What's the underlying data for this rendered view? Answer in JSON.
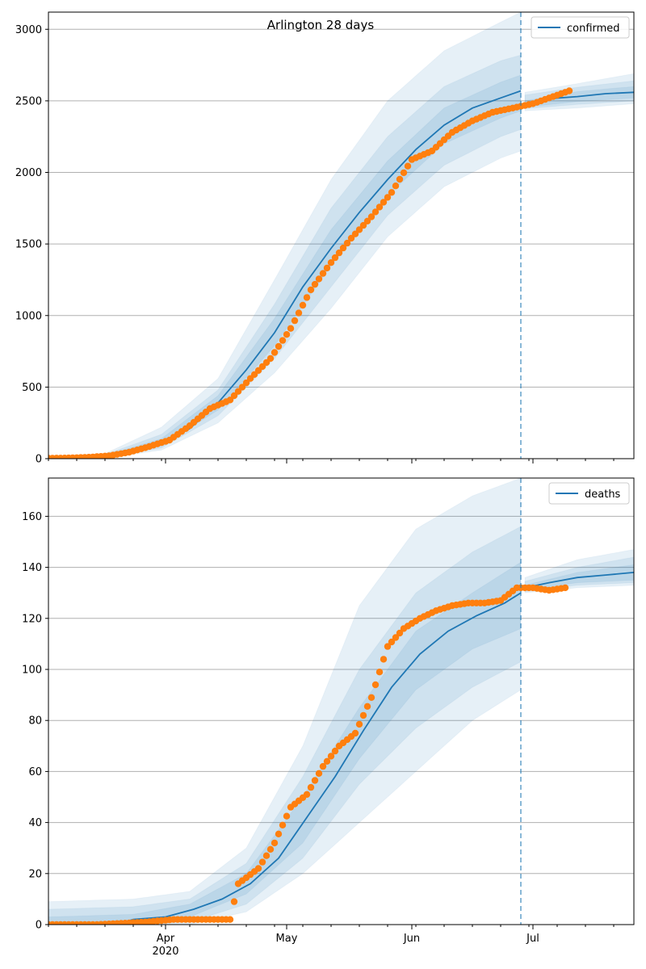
{
  "title": "Arlington 28 days",
  "x_ticks": {
    "major": [
      {
        "date": "2020-04-01",
        "label": "Apr",
        "sublabel": "2020"
      },
      {
        "date": "2020-05-01",
        "label": "May",
        "sublabel": ""
      },
      {
        "date": "2020-06-01",
        "label": "Jun",
        "sublabel": ""
      },
      {
        "date": "2020-07-01",
        "label": "Jul",
        "sublabel": ""
      }
    ]
  },
  "colors": {
    "forecast_line": "#1f77b4",
    "observed_points": "#ff7f0e",
    "band_fill": "#1f77b4",
    "grid": "#b0b0b0",
    "forecast_start_line": "#1f77b4"
  },
  "forecast_start_date": "2020-06-28",
  "chart_data": [
    {
      "type": "line",
      "panel": "top",
      "title": "Arlington 28 days",
      "xlabel": "",
      "ylabel": "",
      "x_range": [
        "2020-03-03",
        "2020-07-26"
      ],
      "ylim": [
        0,
        3120
      ],
      "y_ticks": [
        0,
        500,
        1000,
        1500,
        2000,
        2500,
        3000
      ],
      "grid": "horizontal",
      "legend": {
        "position": "top-right",
        "entries": [
          "confirmed"
        ]
      },
      "series": [
        {
          "name": "confirmed",
          "kind": "forecast_median",
          "points": [
            [
              "2020-03-03",
              0
            ],
            [
              "2020-03-10",
              4
            ],
            [
              "2020-03-17",
              14
            ],
            [
              "2020-03-24",
              45
            ],
            [
              "2020-03-31",
              110
            ],
            [
              "2020-04-07",
              210
            ],
            [
              "2020-04-14",
              390
            ],
            [
              "2020-04-21",
              620
            ],
            [
              "2020-04-28",
              880
            ],
            [
              "2020-05-05",
              1200
            ],
            [
              "2020-05-12",
              1470
            ],
            [
              "2020-05-19",
              1720
            ],
            [
              "2020-05-26",
              1950
            ],
            [
              "2020-06-02",
              2160
            ],
            [
              "2020-06-09",
              2330
            ],
            [
              "2020-06-16",
              2450
            ],
            [
              "2020-06-23",
              2520
            ],
            [
              "2020-06-28",
              2570
            ],
            [
              "2020-06-29",
              2470
            ],
            [
              "2020-07-05",
              2515
            ],
            [
              "2020-07-12",
              2530
            ],
            [
              "2020-07-19",
              2550
            ],
            [
              "2020-07-26",
              2560
            ]
          ]
        },
        {
          "name": "",
          "kind": "observed",
          "points": [
            [
              "2020-03-03",
              3
            ],
            [
              "2020-03-08",
              5
            ],
            [
              "2020-03-13",
              10
            ],
            [
              "2020-03-18",
              20
            ],
            [
              "2020-03-23",
              45
            ],
            [
              "2020-03-28",
              85
            ],
            [
              "2020-04-02",
              130
            ],
            [
              "2020-04-07",
              230
            ],
            [
              "2020-04-12",
              350
            ],
            [
              "2020-04-17",
              410
            ],
            [
              "2020-04-22",
              560
            ],
            [
              "2020-04-27",
              700
            ],
            [
              "2020-05-02",
              910
            ],
            [
              "2020-05-07",
              1180
            ],
            [
              "2020-05-12",
              1370
            ],
            [
              "2020-05-17",
              1540
            ],
            [
              "2020-05-22",
              1690
            ],
            [
              "2020-05-27",
              1860
            ],
            [
              "2020-06-01",
              2090
            ],
            [
              "2020-06-06",
              2150
            ],
            [
              "2020-06-11",
              2280
            ],
            [
              "2020-06-16",
              2360
            ],
            [
              "2020-06-21",
              2420
            ],
            [
              "2020-06-26",
              2450
            ],
            [
              "2020-07-01",
              2480
            ],
            [
              "2020-07-06",
              2530
            ],
            [
              "2020-07-10",
              2570
            ]
          ]
        }
      ],
      "bands": [
        {
          "level": 95,
          "points": [
            [
              "2020-03-03",
              0,
              12
            ],
            [
              "2020-03-17",
              2,
              35
            ],
            [
              "2020-03-31",
              60,
              220
            ],
            [
              "2020-04-14",
              250,
              560
            ],
            [
              "2020-04-28",
              600,
              1250
            ],
            [
              "2020-05-12",
              1050,
              1950
            ],
            [
              "2020-05-26",
              1550,
              2500
            ],
            [
              "2020-06-09",
              1900,
              2850
            ],
            [
              "2020-06-23",
              2100,
              3050
            ],
            [
              "2020-06-28",
              2150,
              3120
            ],
            [
              "2020-06-29",
              2430,
              2560
            ],
            [
              "2020-07-12",
              2450,
              2620
            ],
            [
              "2020-07-26",
              2480,
              2690
            ]
          ]
        },
        {
          "level": 80,
          "points": [
            [
              "2020-03-03",
              0,
              8
            ],
            [
              "2020-03-17",
              4,
              28
            ],
            [
              "2020-03-31",
              75,
              170
            ],
            [
              "2020-04-14",
              300,
              480
            ],
            [
              "2020-04-28",
              700,
              1080
            ],
            [
              "2020-05-12",
              1200,
              1750
            ],
            [
              "2020-05-26",
              1700,
              2250
            ],
            [
              "2020-06-09",
              2050,
              2600
            ],
            [
              "2020-06-23",
              2250,
              2780
            ],
            [
              "2020-06-28",
              2300,
              2820
            ],
            [
              "2020-06-29",
              2445,
              2540
            ],
            [
              "2020-07-12",
              2475,
              2595
            ],
            [
              "2020-07-26",
              2500,
              2640
            ]
          ]
        },
        {
          "level": 50,
          "points": [
            [
              "2020-03-03",
              0,
              6
            ],
            [
              "2020-03-17",
              8,
              22
            ],
            [
              "2020-03-31",
              90,
              140
            ],
            [
              "2020-04-14",
              340,
              440
            ],
            [
              "2020-04-28",
              790,
              980
            ],
            [
              "2020-05-12",
              1350,
              1600
            ],
            [
              "2020-05-26",
              1840,
              2080
            ],
            [
              "2020-06-09",
              2200,
              2450
            ],
            [
              "2020-06-23",
              2380,
              2630
            ],
            [
              "2020-06-28",
              2430,
              2680
            ],
            [
              "2020-06-29",
              2455,
              2500
            ],
            [
              "2020-07-12",
              2495,
              2565
            ],
            [
              "2020-07-26",
              2520,
              2600
            ]
          ]
        }
      ]
    },
    {
      "type": "line",
      "panel": "bottom",
      "title": "",
      "xlabel": "",
      "ylabel": "",
      "x_range": [
        "2020-03-03",
        "2020-07-26"
      ],
      "ylim": [
        0,
        175
      ],
      "y_ticks": [
        0,
        20,
        40,
        60,
        80,
        100,
        120,
        140,
        160
      ],
      "grid": "horizontal",
      "legend": {
        "position": "top-right",
        "entries": [
          "deaths"
        ]
      },
      "series": [
        {
          "name": "deaths",
          "kind": "forecast_median",
          "points": [
            [
              "2020-03-03",
              0
            ],
            [
              "2020-03-20",
              0
            ],
            [
              "2020-03-24",
              2
            ],
            [
              "2020-04-01",
              3
            ],
            [
              "2020-04-08",
              6
            ],
            [
              "2020-04-15",
              10
            ],
            [
              "2020-04-22",
              16
            ],
            [
              "2020-04-29",
              26
            ],
            [
              "2020-05-06",
              42
            ],
            [
              "2020-05-13",
              58
            ],
            [
              "2020-05-20",
              76
            ],
            [
              "2020-05-27",
              93
            ],
            [
              "2020-06-03",
              106
            ],
            [
              "2020-06-10",
              115
            ],
            [
              "2020-06-17",
              121
            ],
            [
              "2020-06-24",
              126
            ],
            [
              "2020-06-28",
              130
            ],
            [
              "2020-06-29",
              132
            ],
            [
              "2020-07-05",
              134
            ],
            [
              "2020-07-12",
              136
            ],
            [
              "2020-07-19",
              137
            ],
            [
              "2020-07-26",
              138
            ]
          ]
        },
        {
          "name": "",
          "kind": "observed",
          "points": [
            [
              "2020-03-03",
              0
            ],
            [
              "2020-03-15",
              0
            ],
            [
              "2020-03-27",
              1
            ],
            [
              "2020-04-03",
              2
            ],
            [
              "2020-04-17",
              2
            ],
            [
              "2020-04-19",
              16
            ],
            [
              "2020-04-24",
              22
            ],
            [
              "2020-04-28",
              32
            ],
            [
              "2020-05-02",
              46
            ],
            [
              "2020-05-06",
              51
            ],
            [
              "2020-05-10",
              62
            ],
            [
              "2020-05-14",
              70
            ],
            [
              "2020-05-18",
              75
            ],
            [
              "2020-05-22",
              89
            ],
            [
              "2020-05-26",
              109
            ],
            [
              "2020-05-30",
              116
            ],
            [
              "2020-06-03",
              120
            ],
            [
              "2020-06-07",
              123
            ],
            [
              "2020-06-11",
              125
            ],
            [
              "2020-06-15",
              126
            ],
            [
              "2020-06-19",
              126
            ],
            [
              "2020-06-23",
              127
            ],
            [
              "2020-06-27",
              132
            ],
            [
              "2020-07-01",
              132
            ],
            [
              "2020-07-05",
              131
            ],
            [
              "2020-07-09",
              132
            ]
          ]
        }
      ],
      "bands": [
        {
          "level": 95,
          "points": [
            [
              "2020-03-03",
              0,
              9
            ],
            [
              "2020-03-24",
              0,
              10
            ],
            [
              "2020-04-07",
              0,
              13
            ],
            [
              "2020-04-21",
              5,
              30
            ],
            [
              "2020-05-05",
              20,
              70
            ],
            [
              "2020-05-19",
              40,
              125
            ],
            [
              "2020-06-02",
              60,
              155
            ],
            [
              "2020-06-16",
              80,
              168
            ],
            [
              "2020-06-28",
              92,
              175
            ],
            [
              "2020-06-29",
              130,
              136
            ],
            [
              "2020-07-12",
              132,
              143
            ],
            [
              "2020-07-26",
              133,
              147
            ]
          ]
        },
        {
          "level": 80,
          "points": [
            [
              "2020-03-03",
              0,
              6
            ],
            [
              "2020-03-24",
              0,
              7
            ],
            [
              "2020-04-07",
              1,
              10
            ],
            [
              "2020-04-21",
              8,
              24
            ],
            [
              "2020-05-05",
              26,
              58
            ],
            [
              "2020-05-19",
              55,
              100
            ],
            [
              "2020-06-02",
              77,
              130
            ],
            [
              "2020-06-16",
              93,
              146
            ],
            [
              "2020-06-28",
              103,
              156
            ],
            [
              "2020-06-29",
              130.5,
              134.5
            ],
            [
              "2020-07-12",
              133,
              140
            ],
            [
              "2020-07-26",
              134,
              144
            ]
          ]
        },
        {
          "level": 50,
          "points": [
            [
              "2020-03-03",
              0,
              3
            ],
            [
              "2020-03-24",
              1,
              4
            ],
            [
              "2020-04-07",
              3,
              8
            ],
            [
              "2020-04-21",
              12,
              20
            ],
            [
              "2020-05-05",
              32,
              50
            ],
            [
              "2020-05-19",
              65,
              85
            ],
            [
              "2020-06-02",
              92,
              115
            ],
            [
              "2020-06-16",
              108,
              130
            ],
            [
              "2020-06-28",
              116,
              142
            ],
            [
              "2020-06-29",
              131,
              133
            ],
            [
              "2020-07-12",
              134,
              138
            ],
            [
              "2020-07-26",
              135,
              141
            ]
          ]
        }
      ]
    }
  ]
}
